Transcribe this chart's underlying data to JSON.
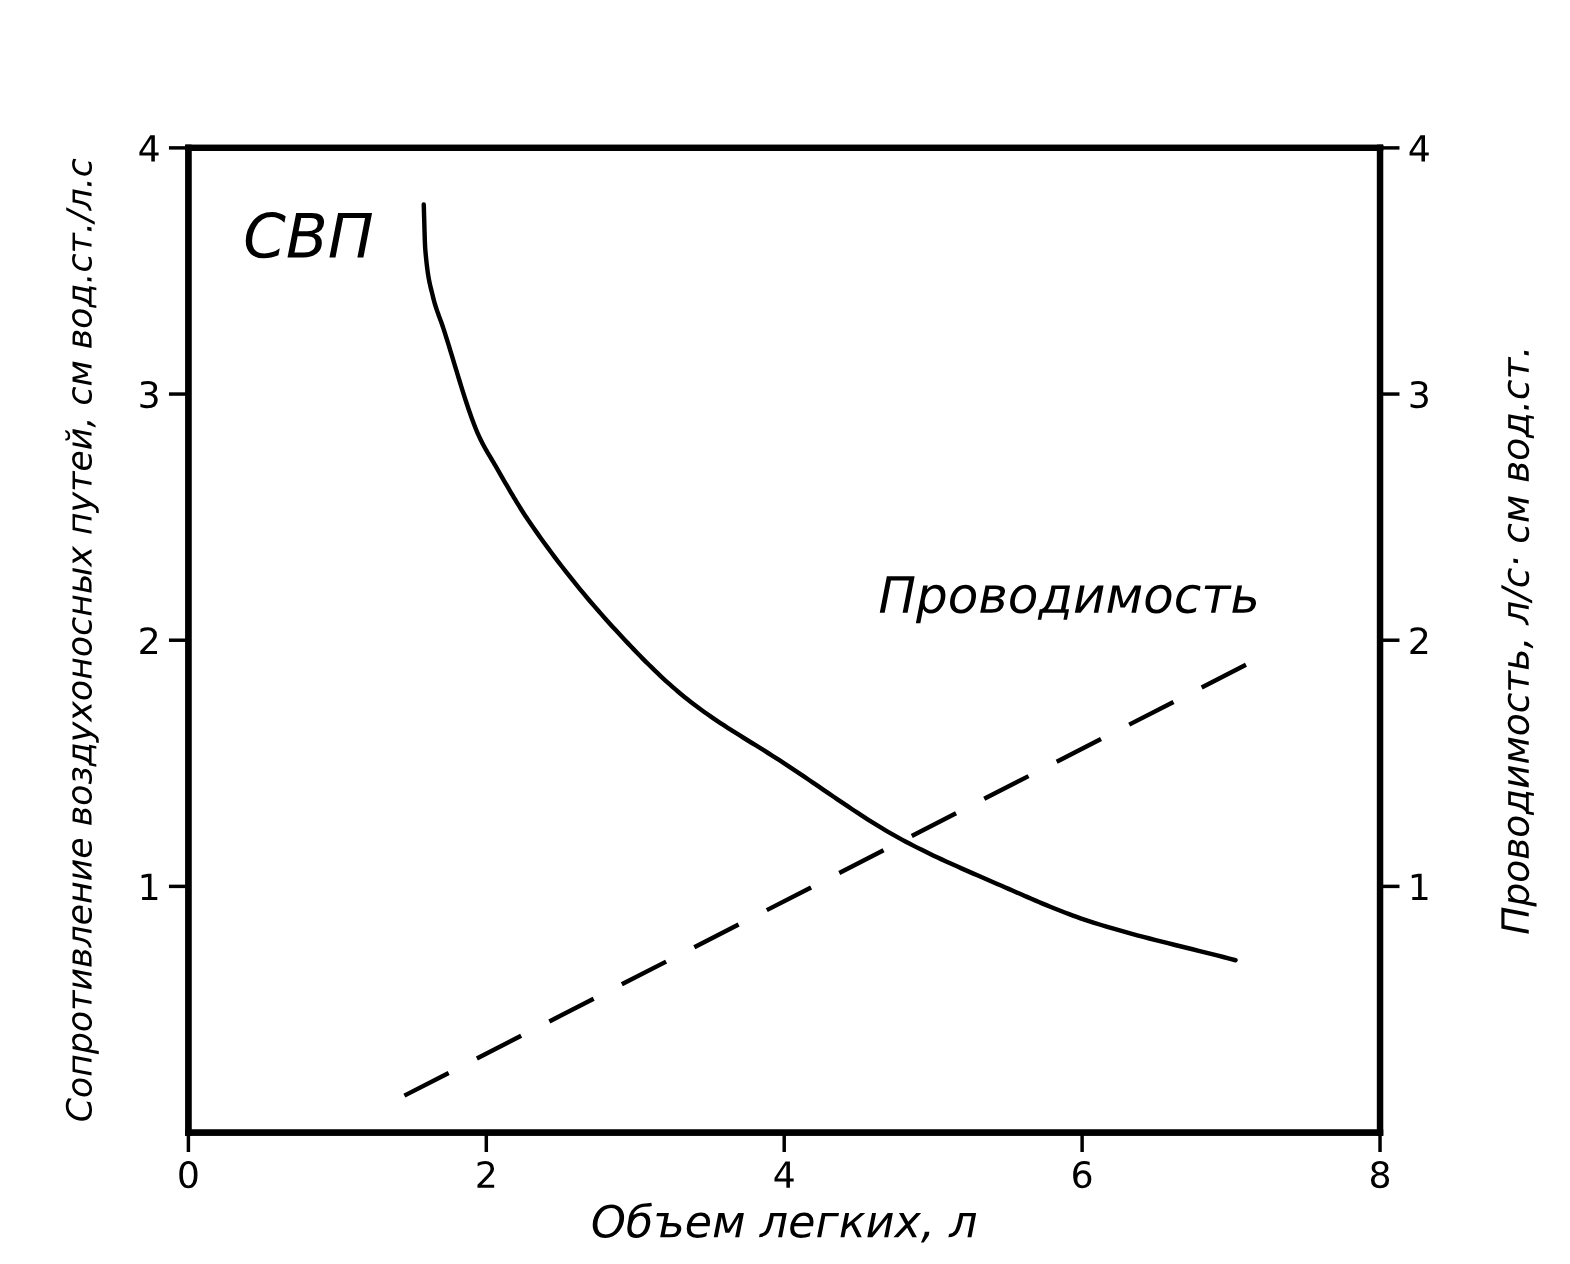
{
  "chart_data": {
    "type": "line",
    "xlabel": "Объем легких, л",
    "ylabel": "Сопротивление воздухоносных путей, см вод.ст./л.с",
    "y2label": "Проводимость, л/с· см вод.ст.",
    "xlim": [
      0,
      8
    ],
    "xticks": [
      0,
      2,
      4,
      6,
      8
    ],
    "ylim": [
      0,
      4
    ],
    "yticks": [
      1,
      2,
      3,
      4
    ],
    "y2lim": [
      0,
      4
    ],
    "y2ticks": [
      1,
      2,
      3,
      4
    ],
    "grid": false,
    "legend": false,
    "marker": "none",
    "line_style": "solid",
    "series": [
      {
        "name": "СВП",
        "color": "#000000",
        "x": [
          1.58,
          1.59,
          1.64,
          1.71,
          1.95,
          2.06,
          2.29,
          2.87,
          3.35,
          4.0,
          4.79,
          5.43,
          6.04,
          7.03
        ],
        "values": [
          3.77,
          3.59,
          3.4,
          3.27,
          2.83,
          2.71,
          2.48,
          2.04,
          1.76,
          1.5,
          1.19,
          1.01,
          0.86,
          0.7
        ]
      },
      {
        "name": "Проводимость",
        "color": "#000000",
        "axis": "y2",
        "line_style": "dashed",
        "x": [
          1.45,
          7.1
        ],
        "values": [
          0.15,
          1.9
        ]
      }
    ]
  }
}
